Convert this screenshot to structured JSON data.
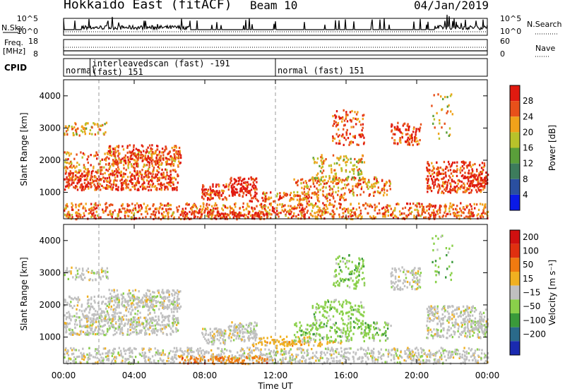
{
  "header": {
    "radar": "Hokkaido East (fitACF)",
    "beam": "Beam 10",
    "date": "04/Jan/2019"
  },
  "chart_data": [
    {
      "type": "line",
      "panel": "noise",
      "ylabel_left": "N.Sky",
      "ylabel_right": "N.Search",
      "left_ticks": [
        "10^5",
        "10^0"
      ],
      "right_ticks": [
        "10^5",
        "10^0"
      ],
      "scale": "log"
    },
    {
      "type": "line",
      "panel": "frequency",
      "ylabel_left": "Freq. [MHz]",
      "ylabel_right": "Nave",
      "left_ticks": [
        "18",
        "8"
      ],
      "right_ticks": [
        "60",
        "0"
      ]
    },
    {
      "type": "table",
      "panel": "cpid",
      "label": "CPID",
      "segments": [
        {
          "start_hour": 0.0,
          "end_hour": 1.5,
          "text": "normal"
        },
        {
          "start_hour": 1.5,
          "end_hour": 12.0,
          "text": "interleavedscan (fast) -191"
        },
        {
          "start_hour": 1.5,
          "end_hour": 12.0,
          "text2": "(fast) 151"
        },
        {
          "start_hour": 12.0,
          "end_hour": 24.0,
          "text": "normal (fast) 151"
        }
      ]
    },
    {
      "type": "heatmap",
      "panel": "power",
      "ylabel": "Slant Range [km]",
      "yticks": [
        1000,
        2000,
        3000,
        4000
      ],
      "ylim": [
        180,
        4500
      ],
      "xlim": [
        0,
        24
      ],
      "colorbar_label": "Power [dB]",
      "colorbar_ticks": [
        "4",
        "8",
        "12",
        "16",
        "20",
        "24",
        "28"
      ],
      "colorbar_colors": [
        "#0a1ae8",
        "#2a4fa0",
        "#3d7c5c",
        "#5a9f3a",
        "#b8c22a",
        "#f0a21a",
        "#e8501a",
        "#e01a10"
      ]
    },
    {
      "type": "heatmap",
      "panel": "velocity",
      "ylabel": "Slant Range [km]",
      "yticks": [
        1000,
        2000,
        3000,
        4000
      ],
      "ylim": [
        180,
        4500
      ],
      "xlim": [
        0,
        24
      ],
      "colorbar_label": "Velocity [m s⁻¹]",
      "colorbar_ticks": [
        "200",
        "100",
        "50",
        "15",
        "−15",
        "−50",
        "−100",
        "−200"
      ],
      "colorbar_colors": [
        "#1a2ab0",
        "#2a6a8a",
        "#3a9a3a",
        "#8ad04a",
        "#c0c0c0",
        "#f0b020",
        "#f07a10",
        "#e03010",
        "#d01010"
      ]
    }
  ],
  "xaxis": {
    "label": "Time UT",
    "ticks": [
      {
        "hour": 0,
        "label": "00:00"
      },
      {
        "hour": 4,
        "label": "04:00"
      },
      {
        "hour": 8,
        "label": "08:00"
      },
      {
        "hour": 12,
        "label": "12:00"
      },
      {
        "hour": 16,
        "label": "16:00"
      },
      {
        "hour": 20,
        "label": "20:00"
      },
      {
        "hour": 24,
        "label": "00:00"
      }
    ]
  },
  "palette": {
    "grey_scatter": "#bdbdbd",
    "dashed_line": "#999999"
  }
}
